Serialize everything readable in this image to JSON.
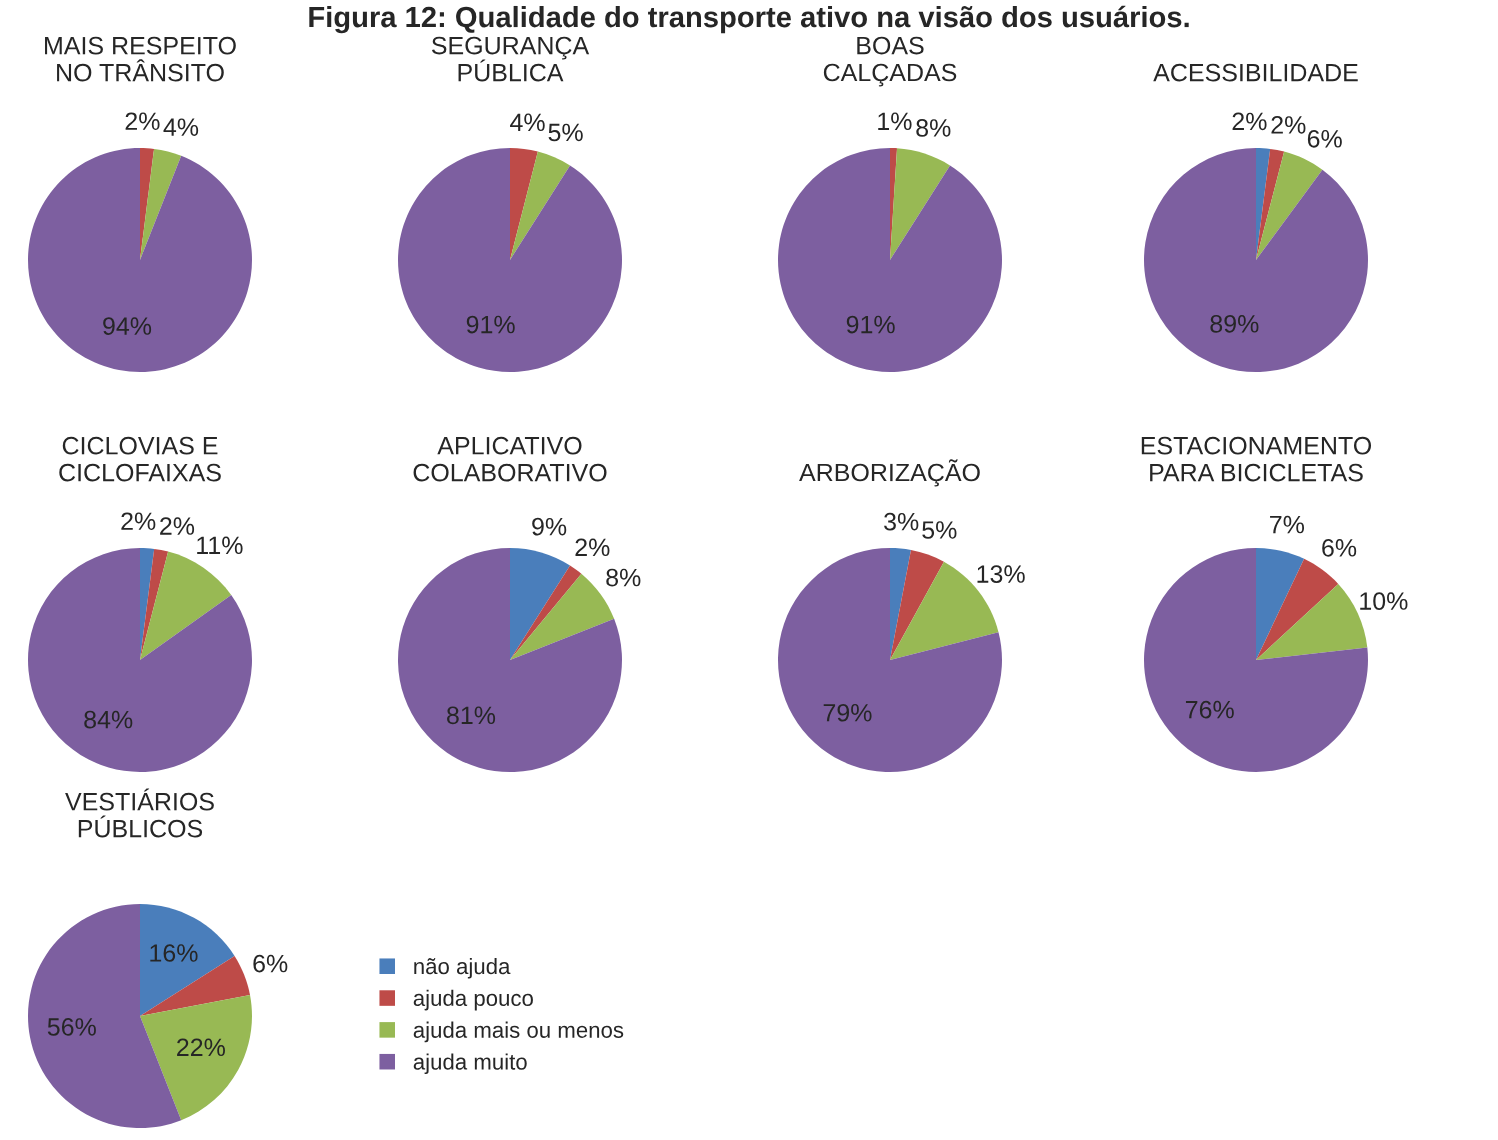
{
  "chart_data": [
    {
      "type": "pie",
      "title": "MAIS RESPEITO\nNO TRÂNSITO",
      "annotations": [
        "Figura 12: Qualidade do transporte ativo na visão dos usuários."
      ],
      "categories": [
        null,
        null,
        null,
        null
      ],
      "values": [
        0,
        2,
        4,
        94
      ],
      "value_labels": [
        null,
        "2%",
        "4%",
        "94%"
      ],
      "colors": [
        "#4a7ebb",
        "#be4b48",
        "#98b954",
        "#7d5fa0"
      ]
    },
    {
      "type": "pie",
      "title": "SEGURANÇA\nPÚBLICA",
      "categories": [
        null,
        null,
        null,
        null
      ],
      "values": [
        0,
        4,
        5,
        91
      ],
      "value_labels": [
        null,
        "4%",
        "5%",
        "91%"
      ],
      "colors": [
        "#4a7ebb",
        "#be4b48",
        "#98b954",
        "#7d5fa0"
      ]
    },
    {
      "type": "pie",
      "title": "BOAS\nCALÇADAS",
      "categories": [
        null,
        null,
        null,
        null
      ],
      "values": [
        0,
        1,
        8,
        91
      ],
      "value_labels": [
        null,
        "1%",
        "8%",
        "91%"
      ],
      "colors": [
        "#4a7ebb",
        "#be4b48",
        "#98b954",
        "#7d5fa0"
      ]
    },
    {
      "type": "pie",
      "title": "ACESSIBILIDADE",
      "categories": [
        null,
        null,
        null,
        null
      ],
      "values": [
        2,
        2,
        6,
        89
      ],
      "value_labels": [
        "2%",
        "2%",
        "6%",
        "89%"
      ],
      "colors": [
        "#4a7ebb",
        "#be4b48",
        "#98b954",
        "#7d5fa0"
      ]
    },
    {
      "type": "pie",
      "title": "CICLOVIAS E\nCICLOFAIXAS",
      "categories": [
        null,
        null,
        null,
        null
      ],
      "values": [
        2,
        2,
        11,
        84
      ],
      "value_labels": [
        "2%",
        "2%",
        "11%",
        "84%"
      ],
      "colors": [
        "#4a7ebb",
        "#be4b48",
        "#98b954",
        "#7d5fa0"
      ]
    },
    {
      "type": "pie",
      "title": "APLICATIVO\nCOLABORATIVO",
      "categories": [
        null,
        null,
        null,
        null
      ],
      "values": [
        9,
        2,
        8,
        81
      ],
      "value_labels": [
        "9%",
        "2%",
        "8%",
        "81%"
      ],
      "colors": [
        "#4a7ebb",
        "#be4b48",
        "#98b954",
        "#7d5fa0"
      ]
    },
    {
      "type": "pie",
      "title": "ARBORIZAÇÃO",
      "categories": [
        null,
        null,
        null,
        null
      ],
      "values": [
        3,
        5,
        13,
        79
      ],
      "value_labels": [
        "3%",
        "5%",
        "13%",
        "79%"
      ],
      "colors": [
        "#4a7ebb",
        "#be4b48",
        "#98b954",
        "#7d5fa0"
      ]
    },
    {
      "type": "pie",
      "title": "ESTACIONAMENTO\nPARA BICICLETAS",
      "categories": [
        null,
        null,
        null,
        null
      ],
      "values": [
        7,
        6,
        10,
        76
      ],
      "value_labels": [
        "7%",
        "6%",
        "10%",
        "76%"
      ],
      "colors": [
        "#4a7ebb",
        "#be4b48",
        "#98b954",
        "#7d5fa0"
      ]
    },
    {
      "type": "pie",
      "title": "VESTIÁRIOS\nPÚBLICOS",
      "legend": "right",
      "categories": [
        "não ajuda",
        "ajuda pouco",
        "ajuda mais ou menos",
        "ajuda muito"
      ],
      "values": [
        16,
        6,
        22,
        56
      ],
      "value_labels": [
        "16%",
        "6%",
        "22%",
        "56%"
      ],
      "colors": [
        "#4a7ebb",
        "#be4b48",
        "#98b954",
        "#7d5fa0"
      ]
    }
  ]
}
